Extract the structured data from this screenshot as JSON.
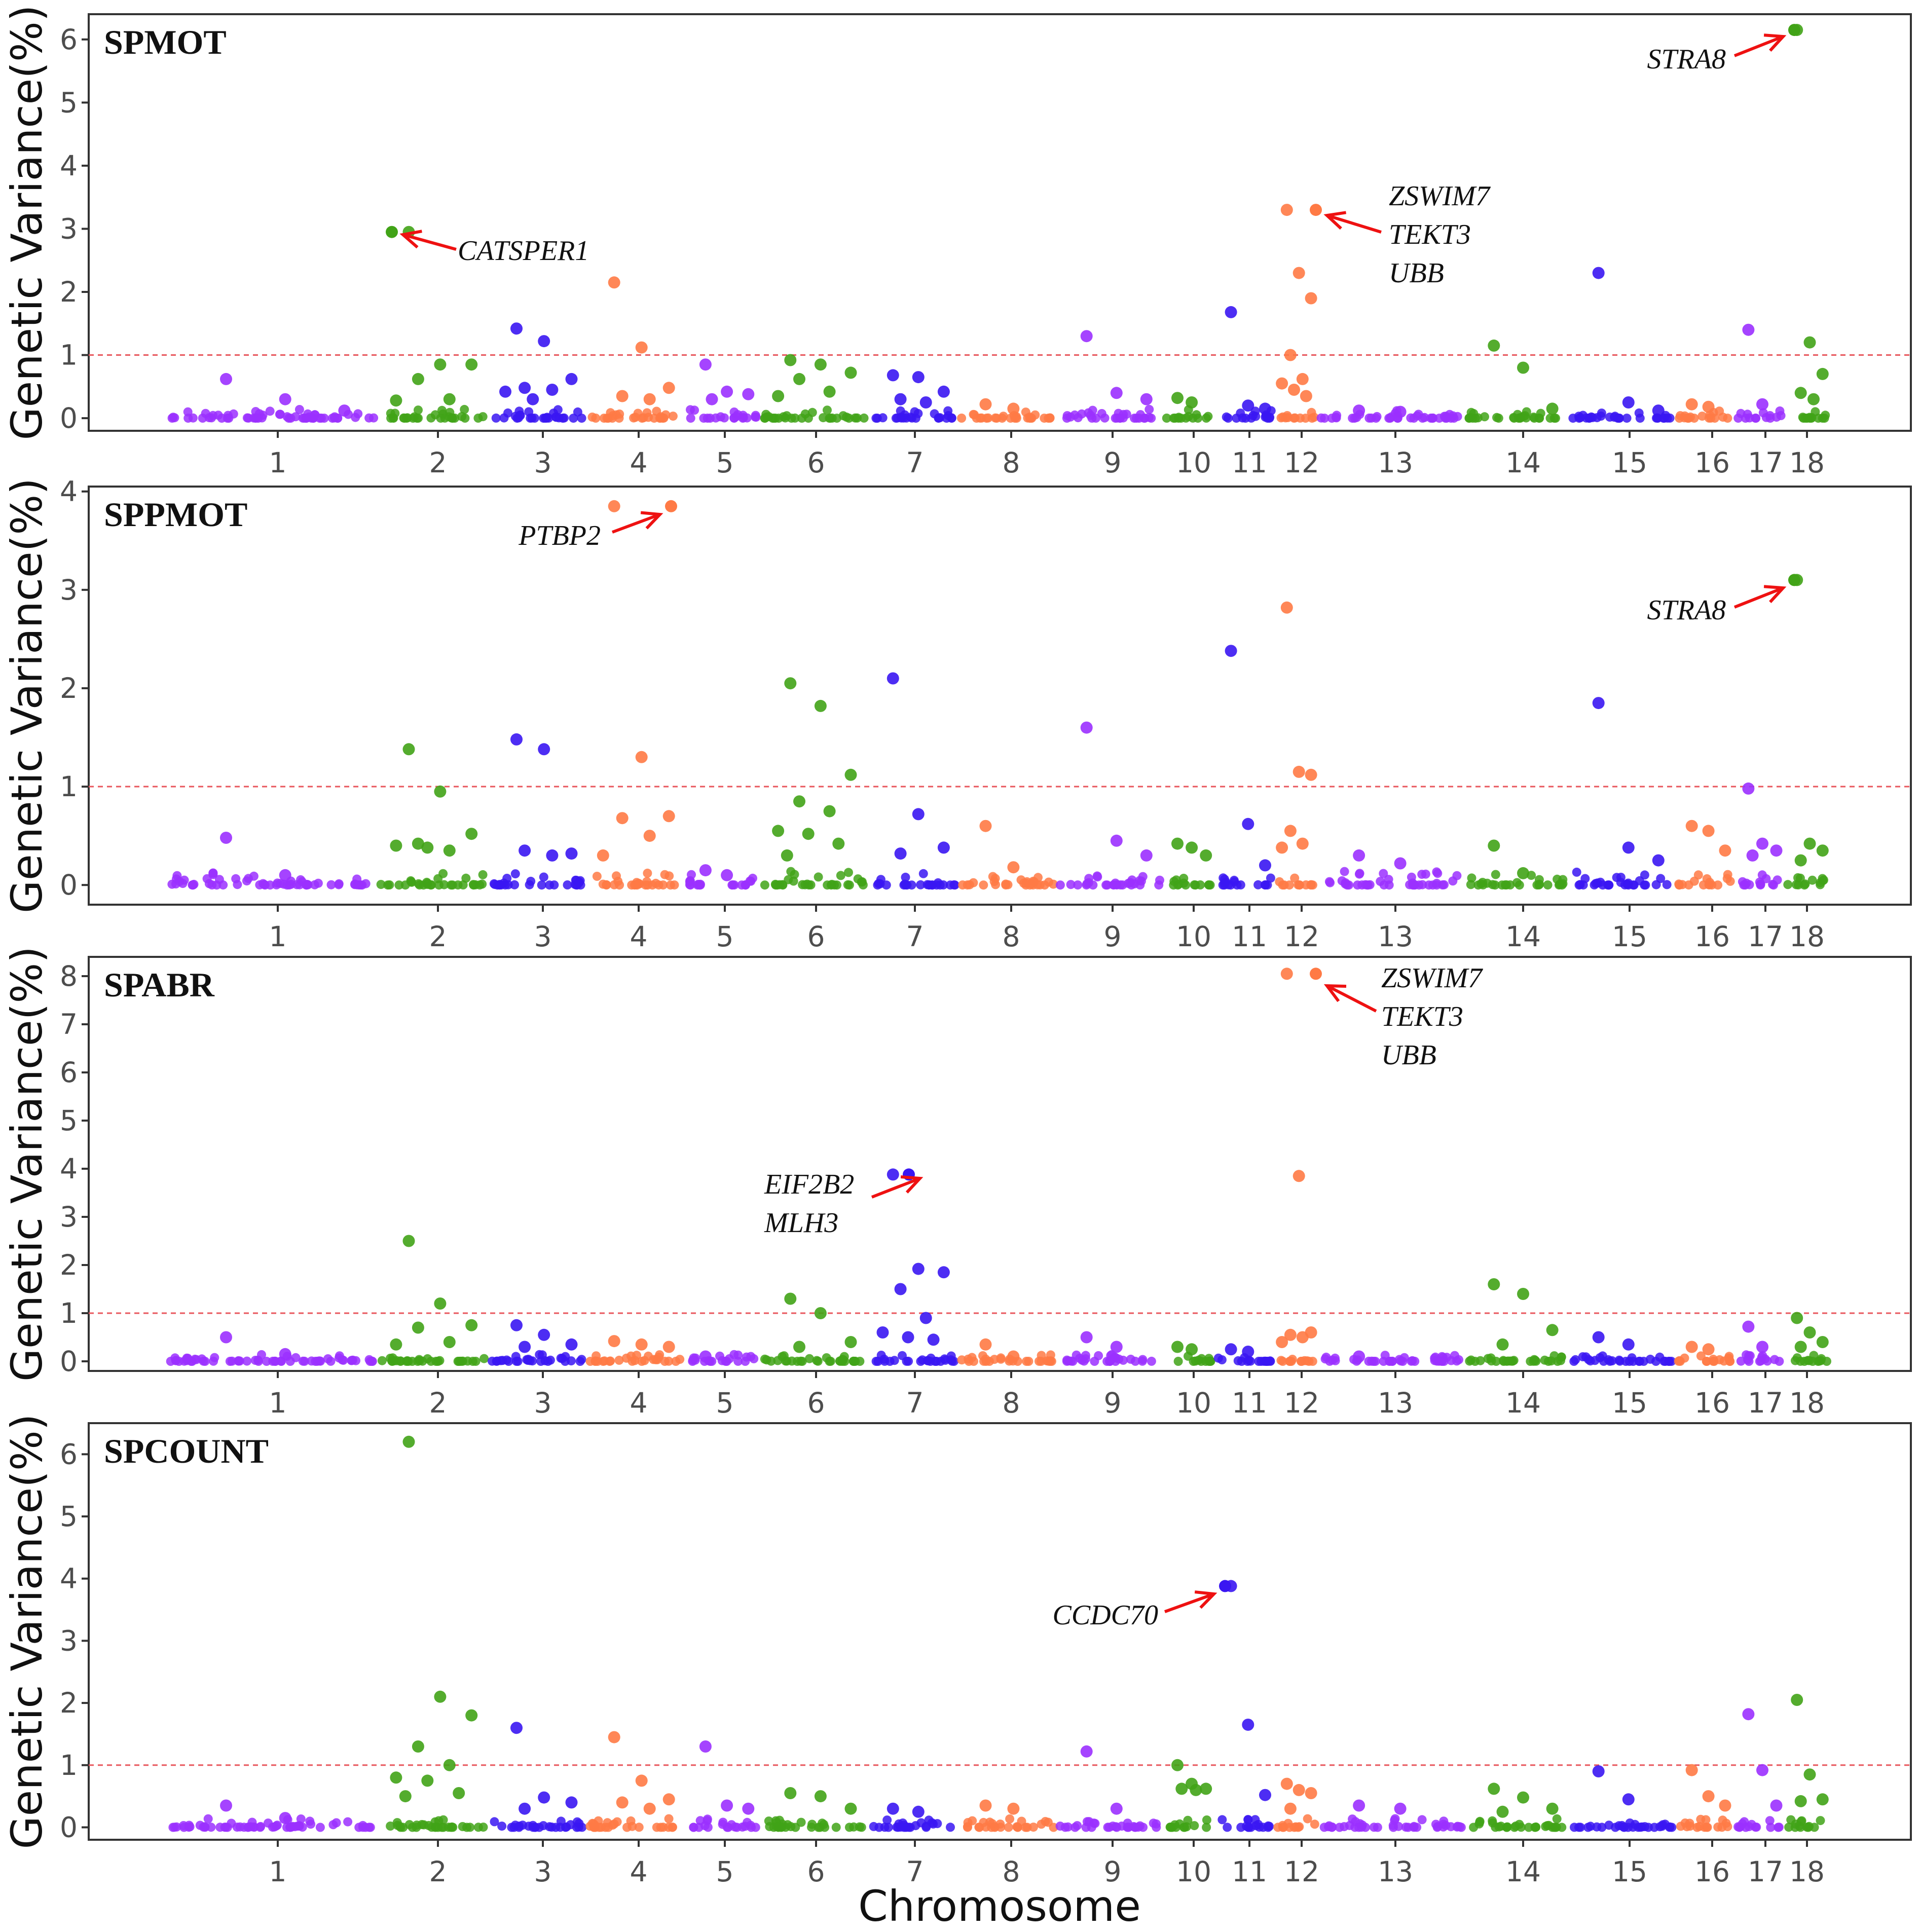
{
  "x_axis_label": "Chromosome",
  "colors": {
    "purple": "#9b30ff",
    "green": "#41a317",
    "blue": "#3a16f2",
    "orange": "#ff7a45",
    "threshold": "#e8575d",
    "arrow": "#ee1111"
  },
  "chart_data": [
    {
      "type": "scatter",
      "title": "SPMOT",
      "ylabel": "Genetic Variance(%)",
      "xlabel": "",
      "ylim": [
        -0.2,
        6.4
      ],
      "yticks": [
        0,
        1,
        2,
        3,
        4,
        5,
        6
      ],
      "threshold": 1,
      "categories": [
        "1",
        "2",
        "3",
        "4",
        "5",
        "6",
        "7",
        "8",
        "9",
        "10",
        "11",
        "12",
        "13",
        "14",
        "15",
        "16",
        "17",
        "18"
      ],
      "highlighted": [
        {
          "chromosome": "2",
          "value": 2.95,
          "genes": [
            "CATSPER1"
          ]
        },
        {
          "chromosome": "12",
          "value": 3.3,
          "genes": [
            "ZSWIM7",
            "TEKT3",
            "UBB"
          ]
        },
        {
          "chromosome": "18",
          "value": 6.15,
          "genes": [
            "STRA8"
          ]
        }
      ],
      "peaks": [
        {
          "chromosome": "1",
          "values": [
            0.62,
            0.3,
            0.12
          ]
        },
        {
          "chromosome": "2",
          "values": [
            2.95,
            0.85,
            0.85,
            0.62,
            0.3,
            0.28
          ]
        },
        {
          "chromosome": "3",
          "values": [
            1.42,
            1.22,
            0.62,
            0.48,
            0.45,
            0.42,
            0.3
          ]
        },
        {
          "chromosome": "4",
          "values": [
            2.15,
            1.12,
            0.48,
            0.35,
            0.3
          ]
        },
        {
          "chromosome": "5",
          "values": [
            0.85,
            0.42,
            0.38,
            0.3
          ]
        },
        {
          "chromosome": "6",
          "values": [
            0.92,
            0.85,
            0.72,
            0.62,
            0.42,
            0.35
          ]
        },
        {
          "chromosome": "7",
          "values": [
            0.68,
            0.65,
            0.42,
            0.3,
            0.25
          ]
        },
        {
          "chromosome": "8",
          "values": [
            0.22,
            0.15
          ]
        },
        {
          "chromosome": "9",
          "values": [
            1.3,
            0.4,
            0.3
          ]
        },
        {
          "chromosome": "10",
          "values": [
            0.32,
            0.25
          ]
        },
        {
          "chromosome": "11",
          "values": [
            1.68,
            0.2,
            0.15
          ]
        },
        {
          "chromosome": "12",
          "values": [
            3.3,
            2.3,
            1.9,
            1.0,
            0.62,
            0.55,
            0.45,
            0.35
          ]
        },
        {
          "chromosome": "13",
          "values": [
            0.12,
            0.1
          ]
        },
        {
          "chromosome": "14",
          "values": [
            1.15,
            0.8,
            0.15
          ]
        },
        {
          "chromosome": "15",
          "values": [
            2.3,
            0.25,
            0.12
          ]
        },
        {
          "chromosome": "16",
          "values": [
            0.22,
            0.18
          ]
        },
        {
          "chromosome": "17",
          "values": [
            1.4,
            0.22
          ]
        },
        {
          "chromosome": "18",
          "values": [
            6.15,
            1.2,
            0.7,
            0.4,
            0.3
          ]
        }
      ]
    },
    {
      "type": "scatter",
      "title": "SPPMOT",
      "ylabel": "Genetic Variance(%)",
      "xlabel": "",
      "ylim": [
        -0.2,
        4.05
      ],
      "yticks": [
        0,
        1,
        2,
        3,
        4
      ],
      "threshold": 1,
      "categories": [
        "1",
        "2",
        "3",
        "4",
        "5",
        "6",
        "7",
        "8",
        "9",
        "10",
        "11",
        "12",
        "13",
        "14",
        "15",
        "16",
        "17",
        "18"
      ],
      "highlighted": [
        {
          "chromosome": "4",
          "value": 3.85,
          "genes": [
            "PTBP2"
          ]
        },
        {
          "chromosome": "18",
          "value": 3.1,
          "genes": [
            "STRA8"
          ]
        }
      ],
      "peaks": [
        {
          "chromosome": "1",
          "values": [
            0.48,
            0.1
          ]
        },
        {
          "chromosome": "2",
          "values": [
            1.38,
            0.95,
            0.52,
            0.42,
            0.35,
            0.4,
            0.38
          ]
        },
        {
          "chromosome": "3",
          "values": [
            1.48,
            1.38,
            0.32,
            0.35,
            0.3
          ]
        },
        {
          "chromosome": "4",
          "values": [
            3.85,
            1.3,
            0.7,
            0.68,
            0.5,
            0.3
          ]
        },
        {
          "chromosome": "5",
          "values": [
            0.15,
            0.1
          ]
        },
        {
          "chromosome": "6",
          "values": [
            2.05,
            1.82,
            1.12,
            0.85,
            0.75,
            0.55,
            0.52,
            0.42,
            0.3
          ]
        },
        {
          "chromosome": "7",
          "values": [
            2.1,
            0.72,
            0.38,
            0.32
          ]
        },
        {
          "chromosome": "8",
          "values": [
            0.6,
            0.18
          ]
        },
        {
          "chromosome": "9",
          "values": [
            1.6,
            0.45,
            0.3
          ]
        },
        {
          "chromosome": "10",
          "values": [
            0.42,
            0.38,
            0.3
          ]
        },
        {
          "chromosome": "11",
          "values": [
            2.38,
            0.62,
            0.2
          ]
        },
        {
          "chromosome": "12",
          "values": [
            2.82,
            1.15,
            1.12,
            0.55,
            0.42,
            0.38
          ]
        },
        {
          "chromosome": "13",
          "values": [
            0.3,
            0.22
          ]
        },
        {
          "chromosome": "14",
          "values": [
            0.4,
            0.12
          ]
        },
        {
          "chromosome": "15",
          "values": [
            1.85,
            0.38,
            0.25
          ]
        },
        {
          "chromosome": "16",
          "values": [
            0.6,
            0.55,
            0.35
          ]
        },
        {
          "chromosome": "17",
          "values": [
            0.98,
            0.42,
            0.35,
            0.3
          ]
        },
        {
          "chromosome": "18",
          "values": [
            3.1,
            0.42,
            0.35,
            0.25
          ]
        }
      ]
    },
    {
      "type": "scatter",
      "title": "SPABR",
      "ylabel": "Genetic Variance(%)",
      "xlabel": "",
      "ylim": [
        -0.2,
        8.4
      ],
      "yticks": [
        0,
        1,
        2,
        3,
        4,
        5,
        6,
        7,
        8
      ],
      "threshold": 1,
      "categories": [
        "1",
        "2",
        "3",
        "4",
        "5",
        "6",
        "7",
        "8",
        "9",
        "10",
        "11",
        "12",
        "13",
        "14",
        "15",
        "16",
        "17",
        "18"
      ],
      "highlighted": [
        {
          "chromosome": "12",
          "value": 8.05,
          "genes": [
            "ZSWIM7",
            "TEKT3",
            "UBB"
          ]
        },
        {
          "chromosome": "7",
          "value": 3.88,
          "genes": [
            "EIF2B2",
            "MLH3"
          ]
        }
      ],
      "peaks": [
        {
          "chromosome": "1",
          "values": [
            0.5,
            0.15
          ]
        },
        {
          "chromosome": "2",
          "values": [
            2.5,
            1.2,
            0.75,
            0.7,
            0.4,
            0.35
          ]
        },
        {
          "chromosome": "3",
          "values": [
            0.75,
            0.55,
            0.35,
            0.3
          ]
        },
        {
          "chromosome": "4",
          "values": [
            0.42,
            0.35,
            0.3
          ]
        },
        {
          "chromosome": "5",
          "values": [
            0.1
          ]
        },
        {
          "chromosome": "6",
          "values": [
            1.3,
            1.0,
            0.4,
            0.3
          ]
        },
        {
          "chromosome": "7",
          "values": [
            3.88,
            1.92,
            1.85,
            1.5,
            0.9,
            0.6,
            0.5,
            0.45
          ]
        },
        {
          "chromosome": "8",
          "values": [
            0.35,
            0.1
          ]
        },
        {
          "chromosome": "9",
          "values": [
            0.5,
            0.3
          ]
        },
        {
          "chromosome": "10",
          "values": [
            0.3,
            0.25
          ]
        },
        {
          "chromosome": "11",
          "values": [
            0.25,
            0.2
          ]
        },
        {
          "chromosome": "12",
          "values": [
            8.05,
            3.85,
            0.6,
            0.55,
            0.5,
            0.4
          ]
        },
        {
          "chromosome": "13",
          "values": [
            0.1
          ]
        },
        {
          "chromosome": "14",
          "values": [
            1.6,
            1.4,
            0.65,
            0.35
          ]
        },
        {
          "chromosome": "15",
          "values": [
            0.5,
            0.35
          ]
        },
        {
          "chromosome": "16",
          "values": [
            0.3,
            0.25
          ]
        },
        {
          "chromosome": "17",
          "values": [
            0.72,
            0.3
          ]
        },
        {
          "chromosome": "18",
          "values": [
            0.9,
            0.6,
            0.4,
            0.3
          ]
        }
      ]
    },
    {
      "type": "scatter",
      "title": "SPCOUNT",
      "ylabel": "Genetic Variance(%)",
      "xlabel": "Chromosome",
      "ylim": [
        -0.2,
        6.5
      ],
      "yticks": [
        0,
        1,
        2,
        3,
        4,
        5,
        6
      ],
      "threshold": 1,
      "categories": [
        "1",
        "2",
        "3",
        "4",
        "5",
        "6",
        "7",
        "8",
        "9",
        "10",
        "11",
        "12",
        "13",
        "14",
        "15",
        "16",
        "17",
        "18"
      ],
      "highlighted": [
        {
          "chromosome": "11",
          "value": 3.88,
          "genes": [
            "CCDC70"
          ]
        }
      ],
      "peaks": [
        {
          "chromosome": "1",
          "values": [
            0.35,
            0.15
          ]
        },
        {
          "chromosome": "2",
          "values": [
            6.2,
            2.1,
            1.8,
            1.3,
            1.0,
            0.8,
            0.75,
            0.55,
            0.5
          ]
        },
        {
          "chromosome": "3",
          "values": [
            1.6,
            0.48,
            0.4,
            0.3
          ]
        },
        {
          "chromosome": "4",
          "values": [
            1.45,
            0.75,
            0.45,
            0.4,
            0.3
          ]
        },
        {
          "chromosome": "5",
          "values": [
            1.3,
            0.35,
            0.3
          ]
        },
        {
          "chromosome": "6",
          "values": [
            0.55,
            0.5,
            0.3
          ]
        },
        {
          "chromosome": "7",
          "values": [
            0.3,
            0.25
          ]
        },
        {
          "chromosome": "8",
          "values": [
            0.35,
            0.3
          ]
        },
        {
          "chromosome": "9",
          "values": [
            1.22,
            0.3
          ]
        },
        {
          "chromosome": "10",
          "values": [
            1.0,
            0.7,
            0.62,
            0.62,
            0.6
          ]
        },
        {
          "chromosome": "11",
          "values": [
            3.88,
            1.65,
            0.52
          ]
        },
        {
          "chromosome": "12",
          "values": [
            0.7,
            0.6,
            0.55,
            0.3
          ]
        },
        {
          "chromosome": "13",
          "values": [
            0.35,
            0.3
          ]
        },
        {
          "chromosome": "14",
          "values": [
            0.62,
            0.48,
            0.3,
            0.25
          ]
        },
        {
          "chromosome": "15",
          "values": [
            0.9,
            0.45
          ]
        },
        {
          "chromosome": "16",
          "values": [
            0.92,
            0.5,
            0.35
          ]
        },
        {
          "chromosome": "17",
          "values": [
            1.82,
            0.92,
            0.35
          ]
        },
        {
          "chromosome": "18",
          "values": [
            2.05,
            0.85,
            0.45,
            0.42
          ]
        }
      ]
    }
  ]
}
